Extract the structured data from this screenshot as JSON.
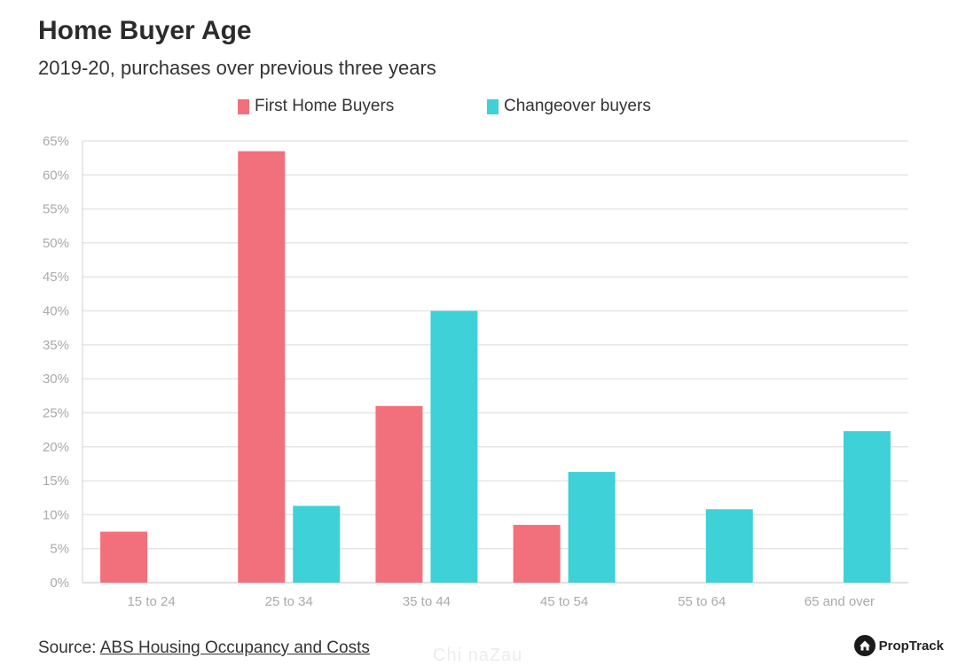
{
  "header": {
    "title": "Home Buyer Age",
    "subtitle": "2019-20, purchases over previous three years"
  },
  "footer": {
    "source_prefix": "Source: ",
    "source_link": "ABS Housing Occupancy and Costs",
    "brand": "PropTrack",
    "watermark": "Chi naZau"
  },
  "colors": {
    "first_home": "#f2707c",
    "changeover": "#3ed1d8",
    "grid": "#e6e6e6",
    "tick": "#aaaaaa"
  },
  "icons": {
    "brand": "house-logo-icon"
  },
  "chart_data": {
    "type": "bar",
    "title": "Home Buyer Age",
    "subtitle": "2019-20, purchases over previous three years",
    "categories": [
      "15 to 24",
      "25 to 34",
      "35 to 44",
      "45 to 54",
      "55 to 64",
      "65 and over"
    ],
    "series": [
      {
        "name": "First Home Buyers",
        "values": [
          7.5,
          63.5,
          26.0,
          8.5,
          0,
          0
        ]
      },
      {
        "name": "Changeover buyers",
        "values": [
          0,
          11.3,
          40.0,
          16.3,
          10.8,
          22.3
        ]
      }
    ],
    "ylim": [
      0,
      65
    ],
    "yticks": [
      "0%",
      "5%",
      "10%",
      "15%",
      "20%",
      "25%",
      "30%",
      "35%",
      "40%",
      "45%",
      "50%",
      "55%",
      "60%",
      "65%"
    ],
    "grid": true,
    "legend": "top-center"
  }
}
